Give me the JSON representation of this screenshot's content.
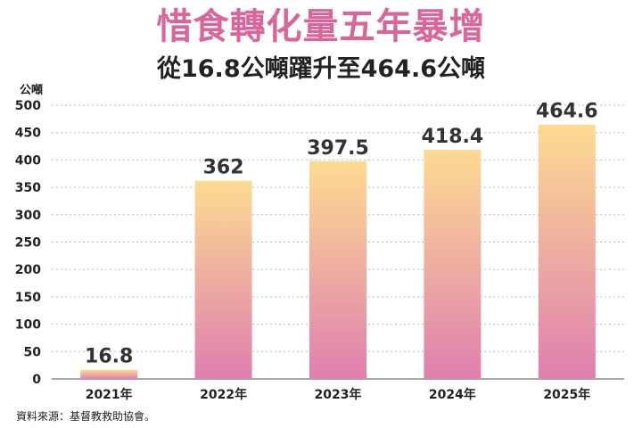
{
  "title": "惜食轉化量五年暴增",
  "subtitle": "從16.8公噸躍升至464.6公噸",
  "source": "資料來源：基督教救助協會。",
  "colors": {
    "title": "#d9669b",
    "bar_top": "#fddb92",
    "bar_bottom": "#df7faf",
    "axis_text": "#222222",
    "gridline": "#bbbbbb"
  },
  "chart_data": {
    "type": "bar",
    "ylabel": "公噸",
    "categories": [
      "2021年",
      "2022年",
      "2023年",
      "2024年",
      "2025年"
    ],
    "values": [
      16.8,
      362,
      397.5,
      418.4,
      464.6
    ],
    "value_labels": [
      "16.8",
      "362",
      "397.5",
      "418.4",
      "464.6"
    ],
    "ylim": [
      0,
      500
    ],
    "yticks": [
      0,
      50,
      100,
      150,
      200,
      250,
      300,
      350,
      400,
      450,
      500
    ],
    "grid": "dashed-horizontal",
    "legend": "none"
  }
}
